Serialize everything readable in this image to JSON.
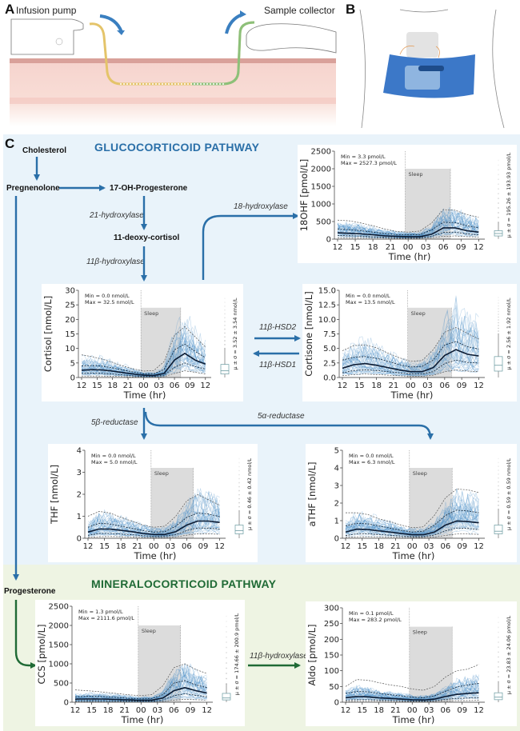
{
  "panels": {
    "a": {
      "letter": "A",
      "pump_label": "Infusion pump",
      "collector_label": "Sample collector"
    },
    "b": {
      "letter": "B"
    },
    "c": {
      "letter": "C"
    }
  },
  "pathways": {
    "gluco_title": "GLUCOCORTICOID PATHWAY",
    "mineral_title": "MINERALOCORTICOID PATHWAY",
    "colors": {
      "gluco": "#2a6fa8",
      "mineral": "#1f6a35",
      "trace": "#4a90c8"
    }
  },
  "metabolites": {
    "cholesterol": "Cholesterol",
    "pregnenolone": "Pregnenolone",
    "ohp": "17-OH-Progesterone",
    "deoxycortisol": "11-deoxy-cortisol",
    "progesterone": "Progesterone"
  },
  "enzymes": {
    "e21": "21-hydroxylase",
    "e11b": "11β-hydroxylase",
    "e18": "18-hydroxylase",
    "hsd2": "11β-HSD2",
    "hsd1": "11β-HSD1",
    "r5b": "5β-reductase",
    "r5a": "5α-reductase",
    "e11b_min": "11β-hydroxylase"
  },
  "chart_data": [
    {
      "id": "18ohf",
      "type": "line",
      "title": "",
      "xlabel": "Time (hr)",
      "ylabel": "18OHF [pmol/L]",
      "xticks": [
        "12",
        "15",
        "18",
        "21",
        "00",
        "03",
        "06",
        "09",
        "12"
      ],
      "yticks": [
        "0",
        "500",
        "1000",
        "1500",
        "2000",
        "2500"
      ],
      "ylim": [
        0,
        2500
      ],
      "min_text": "Min = 3.3 pmol/L",
      "max_text": "Max = 2527.3 pmol/L",
      "stat_text": "μ ± σ = 195.26 ± 193.93 pmol/L",
      "sleep_label": "Sleep",
      "sleep_range_h": [
        11.5,
        19.2
      ],
      "sleep_top": 2000,
      "x_hours": [
        0,
        2,
        4,
        6,
        8,
        10,
        12,
        14,
        16,
        18,
        20,
        22,
        24
      ],
      "median": [
        180,
        165,
        150,
        125,
        95,
        80,
        70,
        70,
        140,
        320,
        320,
        240,
        200
      ],
      "q_upper": [
        290,
        270,
        240,
        200,
        160,
        130,
        120,
        130,
        260,
        480,
        470,
        380,
        320
      ],
      "q_lower": [
        100,
        95,
        85,
        70,
        55,
        45,
        40,
        45,
        80,
        190,
        200,
        150,
        120
      ],
      "p_upper": [
        540,
        520,
        460,
        380,
        290,
        220,
        200,
        230,
        460,
        840,
        820,
        700,
        620
      ],
      "p_lower": [
        40,
        38,
        35,
        30,
        25,
        20,
        18,
        20,
        40,
        80,
        90,
        70,
        60
      ],
      "box": {
        "q1": 90,
        "median": 160,
        "q3": 240,
        "whisker_low": 5,
        "whisker_high": 480
      }
    },
    {
      "id": "cortisol",
      "type": "line",
      "xlabel": "Time (hr)",
      "ylabel": "Cortisol [nmol/L]",
      "xticks": [
        "12",
        "15",
        "18",
        "21",
        "00",
        "03",
        "06",
        "09",
        "12"
      ],
      "yticks": [
        "0",
        "5",
        "10",
        "15",
        "20",
        "25",
        "30"
      ],
      "ylim": [
        0,
        30
      ],
      "min_text": "Min = 0.0 nmol/L",
      "max_text": "Max = 32.5 nmol/L",
      "stat_text": "μ ± σ = 3.52 ± 3.54 nmol/L",
      "sleep_label": "Sleep",
      "sleep_range_h": [
        11.5,
        19.2
      ],
      "sleep_top": 24,
      "x_hours": [
        0,
        2,
        4,
        6,
        8,
        10,
        12,
        14,
        16,
        18,
        20,
        22,
        24
      ],
      "median": [
        2.5,
        2.7,
        2.6,
        2.2,
        1.7,
        1.2,
        0.8,
        0.7,
        1.4,
        6.0,
        8.3,
        6.0,
        4.6
      ],
      "q_upper": [
        4.0,
        4.1,
        3.9,
        3.3,
        2.6,
        1.9,
        1.3,
        1.3,
        2.8,
        9.5,
        11.5,
        9.0,
        6.8
      ],
      "q_lower": [
        1.4,
        1.5,
        1.4,
        1.2,
        0.9,
        0.6,
        0.4,
        0.4,
        0.8,
        3.5,
        5.0,
        3.8,
        2.9
      ],
      "p_upper": [
        7.8,
        7.2,
        6.3,
        5.2,
        4.0,
        3.0,
        2.2,
        2.4,
        5.5,
        14.5,
        17.5,
        14.0,
        10.5
      ],
      "p_lower": [
        0.5,
        0.5,
        0.5,
        0.4,
        0.3,
        0.2,
        0.1,
        0.1,
        0.3,
        1.4,
        2.3,
        1.8,
        1.2
      ],
      "box": {
        "q1": 1.2,
        "median": 2.3,
        "q3": 4.5,
        "whisker_low": 0,
        "whisker_high": 10
      }
    },
    {
      "id": "cortisone",
      "type": "line",
      "xlabel": "Time (hr)",
      "ylabel": "Cortisone [nmol/L]",
      "xticks": [
        "12",
        "15",
        "18",
        "21",
        "00",
        "03",
        "06",
        "09",
        "12"
      ],
      "yticks": [
        "0.0",
        "2.5",
        "5.0",
        "7.5",
        "10.0",
        "12.5",
        "15.0"
      ],
      "ylim": [
        0,
        15
      ],
      "min_text": "Min = 0.0 nmol/L",
      "max_text": "Max = 13.5 nmol/L",
      "stat_text": "μ ± σ = 2.56 ± 1.92 nmol/L",
      "sleep_label": "Sleep",
      "sleep_range_h": [
        11.5,
        19.2
      ],
      "sleep_top": 12,
      "x_hours": [
        0,
        2,
        4,
        6,
        8,
        10,
        12,
        14,
        16,
        18,
        20,
        22,
        24
      ],
      "median": [
        1.6,
        2.2,
        2.4,
        2.1,
        1.7,
        1.3,
        1.0,
        1.0,
        1.7,
        3.8,
        4.8,
        4.0,
        3.7
      ],
      "q_upper": [
        3.0,
        3.5,
        3.6,
        3.3,
        2.8,
        2.2,
        1.8,
        1.9,
        3.0,
        5.6,
        6.2,
        5.3,
        4.9
      ],
      "q_lower": [
        0.8,
        1.2,
        1.3,
        1.2,
        1.0,
        0.8,
        0.6,
        0.6,
        1.0,
        2.4,
        3.0,
        2.6,
        2.5
      ],
      "p_upper": [
        4.6,
        5.5,
        5.6,
        5.1,
        4.2,
        3.4,
        2.8,
        2.9,
        4.8,
        7.8,
        8.6,
        7.6,
        6.6
      ],
      "p_lower": [
        0.3,
        0.5,
        0.6,
        0.5,
        0.4,
        0.3,
        0.2,
        0.2,
        0.4,
        1.0,
        1.3,
        1.1,
        1.0
      ],
      "box": {
        "q1": 1.1,
        "median": 2.1,
        "q3": 3.6,
        "whisker_low": 0,
        "whisker_high": 7.5
      }
    },
    {
      "id": "thf",
      "type": "line",
      "xlabel": "Time (hr)",
      "ylabel": "THF [nmol/L]",
      "xticks": [
        "12",
        "15",
        "18",
        "21",
        "00",
        "03",
        "06",
        "09",
        "12"
      ],
      "yticks": [
        "0",
        "1",
        "2",
        "3",
        "4"
      ],
      "ylim": [
        0,
        4
      ],
      "min_text": "Min = 0.0 nmol/L",
      "max_text": "Max = 5.0 nmol/L",
      "stat_text": "μ ± σ = 0.46 ± 0.42 nmol/L",
      "sleep_label": "Sleep",
      "sleep_range_h": [
        11.5,
        19.2
      ],
      "sleep_top": 3.2,
      "x_hours": [
        0,
        2,
        4,
        6,
        8,
        10,
        12,
        14,
        16,
        18,
        20,
        22,
        24
      ],
      "median": [
        0.28,
        0.42,
        0.42,
        0.36,
        0.3,
        0.22,
        0.17,
        0.17,
        0.3,
        0.6,
        0.78,
        0.78,
        0.72
      ],
      "q_upper": [
        0.5,
        0.68,
        0.65,
        0.55,
        0.45,
        0.35,
        0.28,
        0.3,
        0.55,
        0.95,
        1.15,
        1.1,
        0.98
      ],
      "q_lower": [
        0.13,
        0.22,
        0.22,
        0.19,
        0.16,
        0.12,
        0.09,
        0.1,
        0.16,
        0.35,
        0.47,
        0.46,
        0.42
      ],
      "p_upper": [
        1.0,
        1.22,
        1.15,
        0.95,
        0.78,
        0.6,
        0.5,
        0.55,
        1.0,
        1.7,
        1.98,
        1.75,
        1.5
      ],
      "p_lower": [
        0.04,
        0.07,
        0.08,
        0.07,
        0.06,
        0.04,
        0.03,
        0.03,
        0.06,
        0.14,
        0.2,
        0.2,
        0.18
      ],
      "box": {
        "q1": 0.2,
        "median": 0.35,
        "q3": 0.6,
        "whisker_low": 0,
        "whisker_high": 1.25
      }
    },
    {
      "id": "athf",
      "type": "line",
      "xlabel": "Time (hr)",
      "ylabel": "aTHF [nmol/L]",
      "xticks": [
        "12",
        "15",
        "18",
        "21",
        "00",
        "03",
        "06",
        "09",
        "12"
      ],
      "yticks": [
        "0",
        "1",
        "2",
        "3",
        "4",
        "5"
      ],
      "ylim": [
        0,
        5
      ],
      "min_text": "Min = 0.0 nmol/L",
      "max_text": "Max = 6.3 nmol/L",
      "stat_text": "μ ± σ = 0.59 ± 0.59 nmol/L",
      "sleep_label": "Sleep",
      "sleep_range_h": [
        11.5,
        19.2
      ],
      "sleep_top": 4,
      "x_hours": [
        0,
        2,
        4,
        6,
        8,
        10,
        12,
        14,
        16,
        18,
        20,
        22,
        24
      ],
      "median": [
        0.35,
        0.52,
        0.5,
        0.42,
        0.35,
        0.27,
        0.2,
        0.2,
        0.35,
        0.75,
        0.98,
        0.95,
        0.88
      ],
      "q_upper": [
        0.7,
        0.85,
        0.82,
        0.7,
        0.58,
        0.45,
        0.35,
        0.4,
        0.75,
        1.3,
        1.6,
        1.55,
        1.45
      ],
      "q_lower": [
        0.15,
        0.25,
        0.25,
        0.21,
        0.17,
        0.13,
        0.1,
        0.1,
        0.18,
        0.42,
        0.58,
        0.56,
        0.5
      ],
      "p_upper": [
        1.45,
        1.45,
        1.35,
        1.1,
        0.95,
        0.75,
        0.6,
        0.65,
        1.3,
        2.3,
        2.8,
        2.75,
        2.6
      ],
      "p_lower": [
        0.05,
        0.08,
        0.09,
        0.08,
        0.07,
        0.05,
        0.04,
        0.04,
        0.07,
        0.16,
        0.24,
        0.24,
        0.22
      ],
      "box": {
        "q1": 0.25,
        "median": 0.4,
        "q3": 0.75,
        "whisker_low": 0,
        "whisker_high": 1.65
      }
    },
    {
      "id": "ccs",
      "type": "line",
      "xlabel": "Time (hr)",
      "ylabel": "CCS [pmol/L]",
      "xticks": [
        "12",
        "15",
        "18",
        "21",
        "00",
        "03",
        "06",
        "09",
        "12"
      ],
      "yticks": [
        "0",
        "500",
        "1000",
        "1500",
        "2000",
        "2500"
      ],
      "ylim": [
        0,
        2500
      ],
      "min_text": "Min = 1.3 pmol/L",
      "max_text": "Max = 2111.6 pmol/L",
      "stat_text": "μ ± σ = 174.66 ± 200.9 pmol/L",
      "sleep_label": "Sleep",
      "sleep_range_h": [
        11.5,
        19.2
      ],
      "sleep_top": 2000,
      "x_hours": [
        0,
        2,
        4,
        6,
        8,
        10,
        12,
        14,
        16,
        18,
        20,
        22,
        24
      ],
      "median": [
        80,
        85,
        85,
        80,
        70,
        60,
        50,
        55,
        110,
        300,
        380,
        300,
        240
      ],
      "q_upper": [
        140,
        150,
        150,
        140,
        120,
        100,
        85,
        95,
        200,
        500,
        560,
        450,
        380
      ],
      "q_lower": [
        40,
        45,
        45,
        42,
        38,
        32,
        28,
        30,
        60,
        170,
        220,
        180,
        140
      ],
      "p_upper": [
        320,
        300,
        280,
        250,
        220,
        190,
        170,
        200,
        430,
        900,
        1000,
        850,
        750
      ],
      "p_lower": [
        10,
        12,
        12,
        11,
        10,
        9,
        8,
        9,
        18,
        55,
        75,
        65,
        55
      ],
      "box": {
        "q1": 60,
        "median": 110,
        "q3": 230,
        "whisker_low": 2,
        "whisker_high": 480
      }
    },
    {
      "id": "aldo",
      "type": "line",
      "xlabel": "Time (hr)",
      "ylabel": "Aldo [pmol/L]",
      "xticks": [
        "12",
        "15",
        "18",
        "21",
        "00",
        "03",
        "06",
        "09",
        "12"
      ],
      "yticks": [
        "0",
        "50",
        "100",
        "150",
        "200",
        "250",
        "300"
      ],
      "ylim": [
        0,
        300
      ],
      "min_text": "Min = 0.1 pmol/L",
      "max_text": "Max = 283.2 pmol/L",
      "stat_text": "μ ± σ = 23.83 ± 24.06 pmol/L",
      "sleep_label": "Sleep",
      "sleep_range_h": [
        11.5,
        19.2
      ],
      "sleep_top": 240,
      "x_hours": [
        0,
        2,
        4,
        6,
        8,
        10,
        12,
        14,
        16,
        18,
        20,
        22,
        24
      ],
      "median": [
        14,
        18,
        17,
        14,
        12,
        10,
        8,
        7,
        10,
        18,
        25,
        28,
        30
      ],
      "q_upper": [
        28,
        34,
        33,
        28,
        24,
        20,
        16,
        14,
        20,
        35,
        48,
        55,
        60
      ],
      "q_lower": [
        6,
        8,
        8,
        7,
        6,
        5,
        4,
        4,
        5,
        9,
        12,
        13,
        14
      ],
      "p_upper": [
        50,
        72,
        70,
        62,
        55,
        50,
        42,
        38,
        50,
        80,
        100,
        105,
        120
      ],
      "p_lower": [
        2,
        3,
        3,
        3,
        2,
        2,
        2,
        2,
        2,
        4,
        5,
        5,
        6
      ],
      "box": {
        "q1": 8,
        "median": 16,
        "q3": 30,
        "whisker_low": 0,
        "whisker_high": 65
      }
    }
  ]
}
